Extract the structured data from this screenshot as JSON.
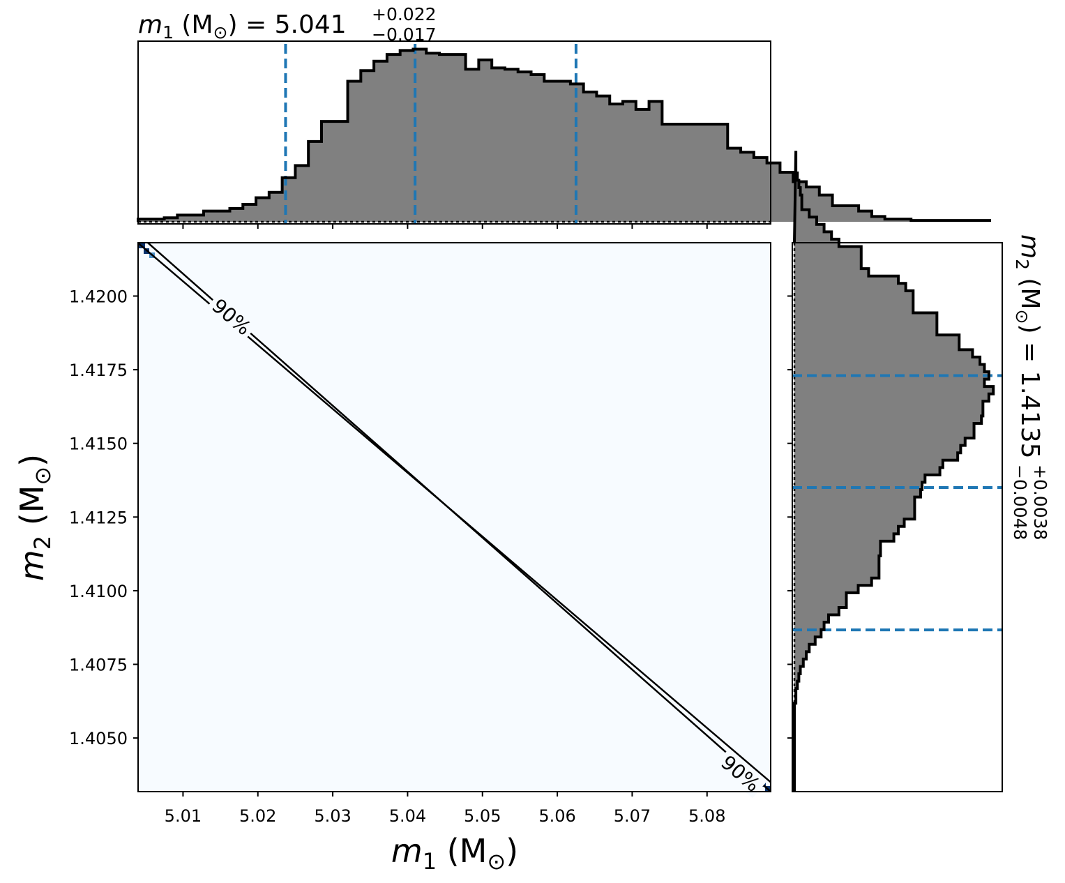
{
  "colors": {
    "hist_fill": "#808080",
    "hist_edge": "#000000",
    "quantile_line": "#1f77b4",
    "density_background": "#f7fbff",
    "density_peak": "#08306b",
    "density_mid": "#4a90c8",
    "contour": "#000000"
  },
  "chart_data": [
    {
      "type": "histogram",
      "panel": "top-marginal",
      "param_symbol": "m",
      "param_sub": "1",
      "param_unit": " (M",
      "param_unit_sub": "⊙",
      "param_unit_close": ")",
      "equals": " = ",
      "median_text": "5.041",
      "plus_text": "+0.022",
      "minus_text": "−0.017",
      "xlim": [
        5.004,
        5.0885
      ],
      "bins_start": 5.004,
      "bin_width": 0.00175,
      "counts": [
        2,
        2,
        3,
        5,
        5,
        8,
        8,
        10,
        13,
        18,
        22,
        33,
        42,
        60,
        75,
        75,
        105,
        113,
        120,
        125,
        128,
        129,
        126,
        125,
        125,
        114,
        121,
        115,
        114,
        112,
        110,
        105,
        105,
        103,
        97,
        94,
        88,
        90,
        84,
        90,
        73,
        73,
        73,
        73,
        73,
        55,
        52,
        48,
        44,
        37,
        30,
        26,
        20,
        12,
        12,
        8,
        4,
        2,
        2,
        1,
        1,
        1,
        1,
        1,
        1
      ],
      "ylim": [
        0,
        135
      ],
      "quantiles": [
        5.0237,
        5.041,
        5.0625
      ],
      "xticks": [
        5.01,
        5.02,
        5.03,
        5.04,
        5.05,
        5.06,
        5.07,
        5.08
      ]
    },
    {
      "type": "heatmap",
      "panel": "joint-density",
      "x_label": "m₁ (M⊙)",
      "y_label": "m₂ (M⊙)",
      "xlim": [
        5.004,
        5.0885
      ],
      "ylim": [
        1.40318,
        1.42181
      ],
      "xticks": [
        5.01,
        5.02,
        5.03,
        5.04,
        5.05,
        5.06,
        5.07,
        5.08
      ],
      "xtick_labels": [
        "5.01",
        "5.02",
        "5.03",
        "5.04",
        "5.05",
        "5.06",
        "5.07",
        "5.08"
      ],
      "yticks": [
        1.405,
        1.4075,
        1.41,
        1.4125,
        1.415,
        1.4175,
        1.42
      ],
      "ytick_labels": [
        "1.4050",
        "1.4075",
        "1.4100",
        "1.4125",
        "1.4150",
        "1.4175",
        "1.4200"
      ],
      "relation": "linear: m2 decreases as m1 increases",
      "contours": [
        {
          "level": "90%",
          "points": [
            [
              5.004,
              1.4218
            ],
            [
              5.0885,
              1.4035
            ]
          ]
        },
        {
          "level": "90%",
          "points": [
            [
              5.0053,
              1.42181
            ],
            [
              5.0885,
              1.40318
            ]
          ]
        }
      ],
      "contour_labels": [
        {
          "text": "90%",
          "x": 5.0165,
          "y": 1.4193
        },
        {
          "text": "90%",
          "x": 5.0845,
          "y": 1.4038
        }
      ]
    },
    {
      "type": "histogram",
      "panel": "right-marginal",
      "orientation": "horizontal",
      "param_symbol": "m",
      "param_sub": "2",
      "param_unit": " (M",
      "param_unit_sub": "⊙",
      "param_unit_close": ")",
      "equals": " = ",
      "median_text": "1.4135",
      "plus_text": "+0.0038",
      "minus_text": "−0.0048",
      "ylim": [
        1.40318,
        1.42181
      ],
      "bins_start": 1.40318,
      "bin_width": 0.00025,
      "counts": [
        0,
        0,
        0,
        0,
        0,
        0,
        0,
        0,
        0,
        0,
        0,
        0,
        1,
        1,
        2,
        3,
        4,
        6,
        8,
        10,
        14,
        18,
        20,
        23,
        30,
        35,
        35,
        43,
        52,
        57,
        57,
        57,
        58,
        58,
        67,
        70,
        74,
        81,
        81,
        81,
        85,
        86,
        88,
        98,
        100,
        110,
        112,
        115,
        121,
        121,
        126,
        127,
        127,
        131,
        134,
        128,
        131,
        128,
        125,
        120,
        111,
        111,
        96,
        96,
        96,
        80,
        80,
        80,
        75,
        70,
        50,
        45,
        45,
        45,
        30,
        25,
        20,
        15,
        10,
        5,
        5,
        4,
        3,
        2,
        1,
        1,
        1
      ],
      "xlim": [
        0,
        140
      ],
      "quantiles": [
        1.40867,
        1.4135,
        1.4173
      ],
      "yticks": [
        1.405,
        1.4075,
        1.41,
        1.4125,
        1.415,
        1.4175,
        1.42
      ]
    }
  ]
}
